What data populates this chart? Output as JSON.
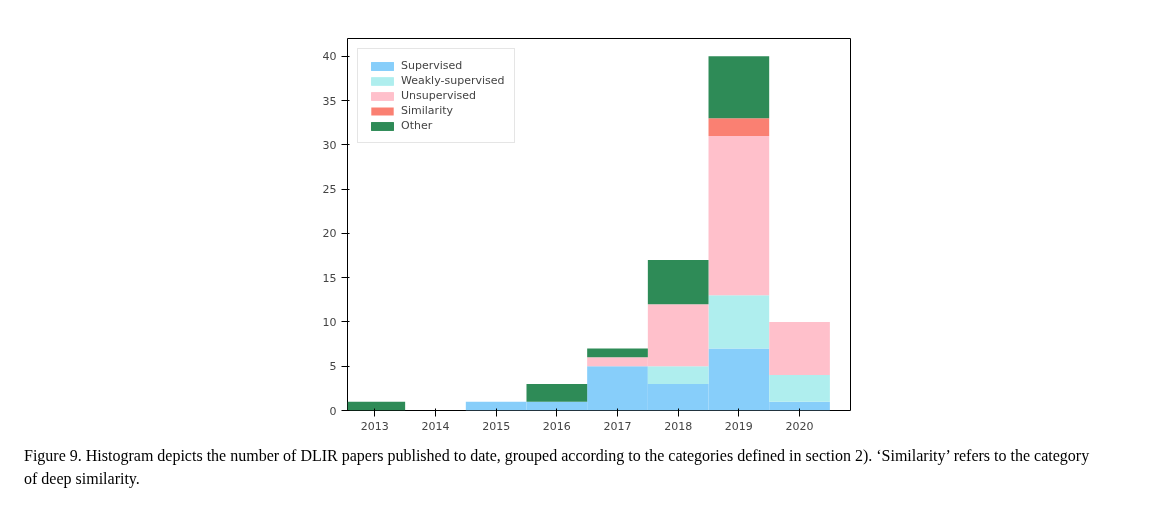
{
  "chart_data": {
    "type": "bar",
    "stacked": true,
    "categories": [
      "2013",
      "2014",
      "2015",
      "2016",
      "2017",
      "2018",
      "2019",
      "2020"
    ],
    "series": [
      {
        "name": "Supervised",
        "color": "#87cefa",
        "values": [
          0,
          0,
          1,
          1,
          5,
          3,
          7,
          1
        ]
      },
      {
        "name": "Weakly-supervised",
        "color": "#afeeee",
        "values": [
          0,
          0,
          0,
          0,
          0,
          2,
          6,
          3
        ]
      },
      {
        "name": "Unsupervised",
        "color": "#ffc0cb",
        "values": [
          0,
          0,
          0,
          0,
          1,
          7,
          18,
          6
        ]
      },
      {
        "name": "Similarity",
        "color": "#fa8072",
        "values": [
          0,
          0,
          0,
          0,
          0,
          0,
          2,
          0
        ]
      },
      {
        "name": "Other",
        "color": "#2e8b57",
        "values": [
          1,
          0,
          0,
          2,
          1,
          5,
          7,
          0
        ]
      }
    ],
    "ylim": [
      0,
      42
    ],
    "yticks": [
      0,
      5,
      10,
      15,
      20,
      25,
      30,
      35,
      40
    ],
    "grid": false,
    "legend": "top left",
    "annotations": [
      "Figure 9. Histogram depicts the number of DLIR papers published to date, grouped according to the categories defined in section 2). ‘Similarity’ refers to the category of deep similarity."
    ]
  }
}
